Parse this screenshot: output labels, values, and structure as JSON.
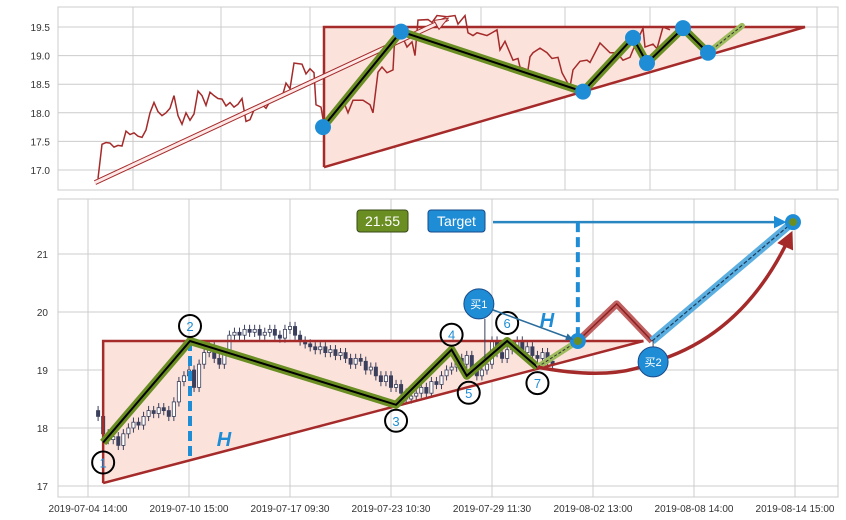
{
  "colors": {
    "price": "#a52a2a",
    "fill": "#fbe3dc",
    "wave": "#6b8e23",
    "accent": "#1f8dd6",
    "grid": "#cccccc",
    "candle": "#3a3f5c"
  },
  "chart_data": [
    {
      "type": "line",
      "panel": "top",
      "ylim": [
        16.65,
        19.85
      ],
      "yticks": [
        "17.0",
        "17.5",
        "18.0",
        "18.5",
        "19.0",
        "19.5"
      ],
      "grid": true,
      "price_series": [
        [
          0,
          16.85
        ],
        [
          1,
          17.45
        ],
        [
          2,
          17.48
        ],
        [
          3,
          17.47
        ],
        [
          4,
          17.4
        ],
        [
          5,
          17.43
        ],
        [
          6,
          17.42
        ],
        [
          7,
          17.68
        ],
        [
          8,
          17.62
        ],
        [
          9,
          17.65
        ],
        [
          10,
          17.59
        ],
        [
          11,
          17.57
        ],
        [
          12,
          17.7
        ],
        [
          13,
          18.0
        ],
        [
          14,
          18.18
        ],
        [
          15,
          18.02
        ],
        [
          16,
          17.95
        ],
        [
          17,
          18.0
        ],
        [
          18,
          18.08
        ],
        [
          19,
          18.3
        ],
        [
          20,
          17.95
        ],
        [
          21,
          17.8
        ],
        [
          22,
          18.0
        ],
        [
          23,
          17.87
        ],
        [
          24,
          17.98
        ],
        [
          25,
          18.38
        ],
        [
          26,
          18.3
        ],
        [
          27,
          18.13
        ],
        [
          28,
          18.36
        ],
        [
          29,
          18.3
        ],
        [
          30,
          18.25
        ],
        [
          31,
          18.24
        ],
        [
          32,
          18.12
        ],
        [
          33,
          18.18
        ],
        [
          34,
          18.1
        ],
        [
          35,
          18.15
        ],
        [
          36,
          18.25
        ],
        [
          37,
          17.85
        ],
        [
          38,
          17.88
        ],
        [
          39,
          18.05
        ],
        [
          40,
          18.12
        ],
        [
          41,
          18.15
        ],
        [
          42,
          18.08
        ],
        [
          43,
          18.2
        ],
        [
          44,
          18.25
        ],
        [
          45,
          18.28
        ],
        [
          46,
          18.27
        ],
        [
          47,
          18.52
        ],
        [
          48,
          18.42
        ],
        [
          49,
          18.87
        ],
        [
          50,
          18.86
        ],
        [
          51,
          18.85
        ],
        [
          52,
          18.68
        ],
        [
          53,
          18.77
        ],
        [
          54,
          18.7
        ],
        [
          54.5,
          18.14
        ],
        [
          55.75,
          18.1
        ],
        [
          56.5,
          17.79
        ],
        [
          58,
          17.96
        ],
        [
          61.25,
          18.22
        ],
        [
          62.5,
          18.0
        ],
        [
          63.75,
          18.22
        ],
        [
          66.25,
          18.22
        ],
        [
          68,
          18.14
        ],
        [
          68.75,
          18.0
        ],
        [
          70,
          18.71
        ],
        [
          71,
          18.8
        ],
        [
          72.25,
          18.7
        ],
        [
          73.75,
          18.75
        ],
        [
          74.25,
          19.4
        ],
        [
          75.5,
          19.42
        ],
        [
          77.25,
          19.15
        ],
        [
          78.5,
          19.24
        ],
        [
          79.25,
          19.0
        ],
        [
          80,
          19.62
        ],
        [
          82.5,
          19.63
        ],
        [
          83.5,
          19.58
        ],
        [
          84.75,
          19.7
        ],
        [
          87.25,
          19.68
        ],
        [
          89.25,
          19.7
        ],
        [
          90,
          19.55
        ],
        [
          91.75,
          19.7
        ],
        [
          92.5,
          19.4
        ],
        [
          93.75,
          19.35
        ],
        [
          94.75,
          19.4
        ],
        [
          97.25,
          19.35
        ],
        [
          98.5,
          19.4
        ],
        [
          99.75,
          19.45
        ],
        [
          100.5,
          19.1
        ],
        [
          101.75,
          19.25
        ],
        [
          103.75,
          18.92
        ],
        [
          105,
          18.95
        ],
        [
          105.5,
          18.8
        ],
        [
          107.5,
          18.75
        ],
        [
          108,
          18.98
        ],
        [
          108.75,
          19.05
        ],
        [
          110.5,
          19.13
        ],
        [
          112.25,
          19.05
        ],
        [
          113.5,
          18.95
        ],
        [
          115,
          18.97
        ],
        [
          116,
          18.7
        ],
        [
          117.25,
          18.54
        ],
        [
          118,
          18.45
        ],
        [
          118.75,
          18.75
        ],
        [
          120.5,
          18.9
        ],
        [
          122.25,
          18.92
        ],
        [
          123,
          18.88
        ],
        [
          125.5,
          19.22
        ],
        [
          128,
          19.05
        ],
        [
          129.75,
          19.05
        ],
        [
          131.25,
          18.92
        ],
        [
          133,
          18.97
        ],
        [
          133.75,
          19.1
        ],
        [
          136.25,
          19.48
        ],
        [
          136.75,
          19.15
        ],
        [
          138.75,
          19.2
        ],
        [
          139.75,
          19.12
        ],
        [
          141.25,
          19.5
        ],
        [
          143,
          19.45
        ]
      ],
      "trend_arrow": [
        [
          -0.75,
          16.78
        ],
        [
          87.5,
          19.65
        ]
      ],
      "triangle": {
        "apex_top": [
          56.5,
          19.5
        ],
        "apex_bottom": [
          56.5,
          17.05
        ],
        "end": [
          176.75,
          19.5
        ]
      },
      "wave_points": [
        [
          56.25,
          17.75
        ],
        [
          75.75,
          19.42
        ],
        [
          121.25,
          18.37
        ],
        [
          133.75,
          19.31
        ],
        [
          137.25,
          18.87
        ],
        [
          146.25,
          19.48
        ],
        [
          152.5,
          19.05
        ]
      ],
      "wave_projection": [
        [
          152.5,
          19.05
        ],
        [
          161,
          19.52
        ]
      ]
    },
    {
      "type": "candlestick",
      "panel": "bottom",
      "ylim": [
        16.8,
        21.95
      ],
      "yticks": [
        "17",
        "18",
        "19",
        "20",
        "21"
      ],
      "xticks": [
        "2019-07-04 14:00",
        "2019-07-10 15:00",
        "2019-07-17 09:30",
        "2019-07-23 10:30",
        "2019-07-29 11:30",
        "2019-08-02 13:00",
        "2019-08-08 14:00",
        "2019-08-14 15:00"
      ],
      "grid": true,
      "closes": [
        18.2,
        17.9,
        17.8,
        17.85,
        17.7,
        17.9,
        18.0,
        18.1,
        18.05,
        18.2,
        18.3,
        18.25,
        18.35,
        18.3,
        18.2,
        18.45,
        18.8,
        18.9,
        19.0,
        18.7,
        19.1,
        19.3,
        19.4,
        19.2,
        19.1,
        19.3,
        19.6,
        19.65,
        19.6,
        19.7,
        19.65,
        19.7,
        19.6,
        19.65,
        19.7,
        19.6,
        19.55,
        19.7,
        19.75,
        19.6,
        19.5,
        19.45,
        19.4,
        19.35,
        19.4,
        19.3,
        19.35,
        19.25,
        19.3,
        19.2,
        19.1,
        19.2,
        19.15,
        19.0,
        19.05,
        18.9,
        18.8,
        18.9,
        18.7,
        18.75,
        18.6,
        18.5,
        18.55,
        18.6,
        18.7,
        18.6,
        18.8,
        18.75,
        18.9,
        19.0,
        19.05,
        19.2,
        19.1,
        19.25,
        19.0,
        18.9,
        19.0,
        19.1,
        19.5,
        19.3,
        19.2,
        19.35,
        19.4,
        19.5,
        19.3,
        19.4,
        19.25,
        19.2,
        19.3,
        19.15,
        19.1
      ],
      "triangle": {
        "apex_top": [
          3,
          19.5
        ],
        "apex_bottom": [
          3,
          17.05
        ],
        "end": [
          110,
          19.5
        ]
      },
      "wave_points": [
        {
          "label": "1",
          "x": 3,
          "y": 17.75
        },
        {
          "label": "2",
          "x": 20.2,
          "y": 19.5
        },
        {
          "label": "3",
          "x": 61,
          "y": 18.4
        },
        {
          "label": "4",
          "x": 72,
          "y": 19.35
        },
        {
          "label": "5",
          "x": 75,
          "y": 18.9
        },
        {
          "label": "6",
          "x": 83,
          "y": 19.5
        },
        {
          "label": "7",
          "x": 89,
          "y": 19.05
        }
      ],
      "breakout": [
        97,
        19.5
      ],
      "pullback_path": [
        [
          97,
          19.5
        ],
        [
          104.7,
          20.14
        ],
        [
          111.7,
          19.5
        ]
      ],
      "target_path": [
        [
          111.7,
          19.5
        ],
        [
          139.6,
          21.55
        ]
      ],
      "target_value": "21.55",
      "target_label": "Target",
      "height_label": "H",
      "buy1": {
        "label": "买1",
        "x": 77.4,
        "y": 20.14
      },
      "buy2": {
        "label": "买2",
        "x": 111.9,
        "y": 19.14
      }
    }
  ]
}
